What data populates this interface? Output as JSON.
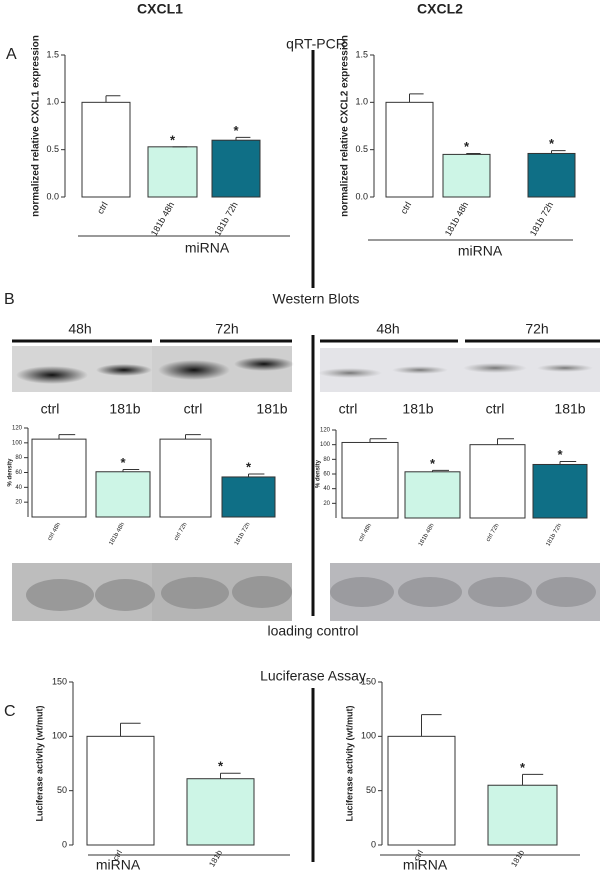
{
  "columns": [
    "CXCL1",
    "CXCL2"
  ],
  "panels": [
    {
      "letter": "A",
      "title": "qRT-PCR"
    },
    {
      "letter": "B",
      "title": "Western Blots"
    },
    {
      "letter": "C",
      "title": "Luciferase Assay"
    }
  ],
  "blots": {
    "times": [
      "48h",
      "72h",
      "48h",
      "72h"
    ],
    "lanes": [
      "ctrl",
      "181b",
      "ctrl",
      "181b",
      "ctrl",
      "181b",
      "ctrl",
      "181b"
    ],
    "loading_label": "loading control"
  },
  "chart_data": [
    {
      "type": "bar",
      "ylabel": "normalized relative CXCL1 expression",
      "xlabel": "miRNA",
      "categories": [
        "ctrl",
        "181b  48h",
        "181b  72h"
      ],
      "values": [
        1.0,
        0.53,
        0.6
      ],
      "errors": [
        0.07,
        0.0,
        0.03
      ],
      "colors": [
        "#ffffff",
        "#cdf5e6",
        "#0f6f86"
      ],
      "significance": [
        null,
        "*",
        "*"
      ],
      "ylim": [
        0,
        1.5
      ],
      "yticks": [
        {
          "value": 0,
          "label": "0.0"
        },
        0.5,
        {
          "value": 1,
          "label": "1.0"
        },
        1.5
      ]
    },
    {
      "type": "bar",
      "ylabel": "normalized relative CXCL2 expression",
      "xlabel": "miRNA",
      "categories": [
        "ctrl",
        "181b  48h",
        "181b  72h"
      ],
      "values": [
        1.0,
        0.45,
        0.46
      ],
      "errors": [
        0.09,
        0.01,
        0.03
      ],
      "colors": [
        "#ffffff",
        "#cdf5e6",
        "#0f6f86"
      ],
      "significance": [
        null,
        "*",
        "*"
      ],
      "ylim": [
        0,
        1.5
      ],
      "yticks": [
        {
          "value": 0,
          "label": "0.0"
        },
        0.5,
        {
          "value": 1,
          "label": "1.0"
        },
        1.5
      ]
    },
    {
      "type": "bar",
      "ylabel": "% density",
      "categories": [
        "ctrl 48h",
        "181b 48h",
        "ctrl 72h",
        "181b 72h"
      ],
      "values": [
        105,
        61,
        105,
        54
      ],
      "errors": [
        6,
        3,
        6,
        4
      ],
      "colors": [
        "#ffffff",
        "#cdf5e6",
        "#ffffff",
        "#0f6f86"
      ],
      "significance": [
        null,
        "*",
        null,
        "*"
      ],
      "ylim": [
        0,
        120
      ],
      "yticks": [
        20,
        40,
        60,
        80,
        100,
        120
      ]
    },
    {
      "type": "bar",
      "ylabel": "% density",
      "categories": [
        "ctrl 48h",
        "181b 48h",
        "ctrl 72h",
        "181b 72h"
      ],
      "values": [
        103,
        63,
        100,
        73
      ],
      "errors": [
        5,
        2,
        8,
        4
      ],
      "colors": [
        "#ffffff",
        "#cdf5e6",
        "#ffffff",
        "#0f6f86"
      ],
      "significance": [
        null,
        "*",
        null,
        "*"
      ],
      "ylim": [
        0,
        120
      ],
      "yticks": [
        20,
        40,
        60,
        80,
        100,
        120
      ]
    },
    {
      "type": "bar",
      "ylabel": "Luciferase activity (wt/mut)",
      "xlabel": "miRNA",
      "categories": [
        "ctrl",
        "181b"
      ],
      "values": [
        100,
        61
      ],
      "errors": [
        12,
        5
      ],
      "colors": [
        "#ffffff",
        "#cdf5e6"
      ],
      "significance": [
        null,
        "*"
      ],
      "ylim": [
        0,
        150
      ],
      "yticks": [
        0,
        50,
        100,
        150
      ]
    },
    {
      "type": "bar",
      "ylabel": "Luciferase activity (wt/mut)",
      "xlabel": "miRNA",
      "categories": [
        "ctrl",
        "181b"
      ],
      "values": [
        100,
        55
      ],
      "errors": [
        20,
        10
      ],
      "colors": [
        "#ffffff",
        "#cdf5e6"
      ],
      "significance": [
        null,
        "*"
      ],
      "ylim": [
        0,
        150
      ],
      "yticks": [
        0,
        50,
        100,
        150
      ]
    }
  ]
}
